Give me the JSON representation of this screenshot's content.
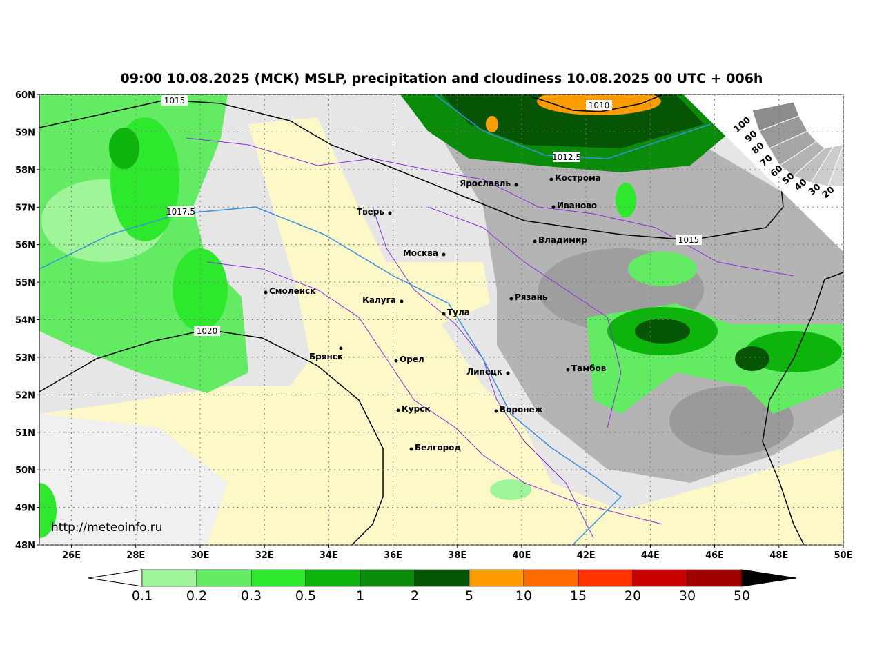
{
  "title": "09:00 10.08.2025 (МСК) MSLP, precipitation and cloudiness 10.08.2025 00 UTC + 006h",
  "url": "http://meteoinfo.ru",
  "lat_ticks": [
    {
      "value": 60,
      "label": "60N"
    },
    {
      "value": 59,
      "label": "59N"
    },
    {
      "value": 58,
      "label": "58N"
    },
    {
      "value": 57,
      "label": "57N"
    },
    {
      "value": 56,
      "label": "56N"
    },
    {
      "value": 55,
      "label": "55N"
    },
    {
      "value": 54,
      "label": "54N"
    },
    {
      "value": 53,
      "label": "53N"
    },
    {
      "value": 52,
      "label": "52N"
    },
    {
      "value": 51,
      "label": "51N"
    },
    {
      "value": 50,
      "label": "50N"
    },
    {
      "value": 49,
      "label": "49N"
    },
    {
      "value": 48,
      "label": "48N"
    }
  ],
  "lon_ticks": [
    {
      "value": 26,
      "label": "26E"
    },
    {
      "value": 28,
      "label": "28E"
    },
    {
      "value": 30,
      "label": "30E"
    },
    {
      "value": 32,
      "label": "32E"
    },
    {
      "value": 34,
      "label": "34E"
    },
    {
      "value": 36,
      "label": "36E"
    },
    {
      "value": 38,
      "label": "38E"
    },
    {
      "value": 40,
      "label": "40E"
    },
    {
      "value": 42,
      "label": "42E"
    },
    {
      "value": 44,
      "label": "44E"
    },
    {
      "value": 46,
      "label": "46E"
    },
    {
      "value": 48,
      "label": "48E"
    },
    {
      "value": 50,
      "label": "50E"
    }
  ],
  "cities": [
    "Ярославль",
    "Кострома",
    "Иваново",
    "Тверь",
    "Москва",
    "Владимир",
    "Смоленск",
    "Калуга",
    "Тула",
    "Рязань",
    "Брянск",
    "Орел",
    "Липецк",
    "Тамбов",
    "Курск",
    "Воронеж",
    "Белгород"
  ],
  "isobar_labels": [
    1015,
    1010,
    1012.5,
    1017.5,
    1015,
    1020
  ],
  "cloudiness_scale": [
    100,
    90,
    80,
    70,
    60,
    50,
    40,
    30,
    20
  ],
  "precip_scale": {
    "labels": [
      0.1,
      0.2,
      0.3,
      0.5,
      1,
      2,
      5,
      10,
      15,
      20,
      30,
      50
    ],
    "colors": [
      "#a0f59a",
      "#64eb64",
      "#2de82d",
      "#0cb40c",
      "#0a8c0a",
      "#055505",
      "#ff9c00",
      "#ff6a00",
      "#ff3200",
      "#c80000",
      "#a00000"
    ],
    "under_color": "#ffffff",
    "over_color": "#000000"
  }
}
